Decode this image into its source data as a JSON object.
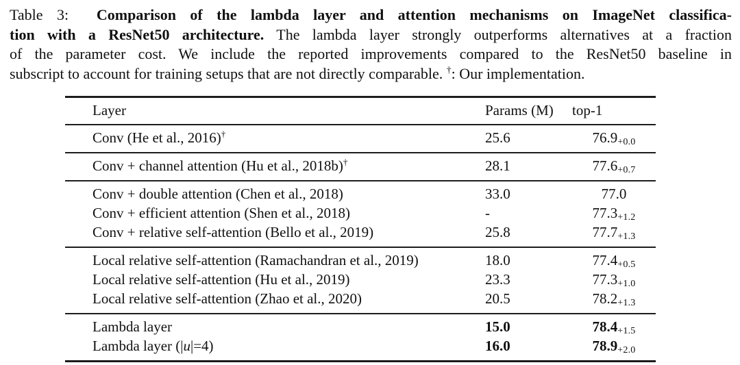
{
  "caption": {
    "lines": [
      {
        "segments": [
          {
            "t": "Table 3:  ",
            "b": false
          },
          {
            "t": "Comparison of the lambda layer and attention mechanisms on ImageNet classifica-",
            "b": true
          }
        ]
      },
      {
        "segments": [
          {
            "t": "tion with a ResNet50 architecture.",
            "b": true
          },
          {
            "t": " The lambda layer strongly outperforms alternatives at a fraction",
            "b": false
          }
        ]
      },
      {
        "segments": [
          {
            "t": "of the parameter cost. We include the reported improvements compared to the ResNet50 baseline in",
            "b": false
          }
        ]
      },
      {
        "segments": [
          {
            "t": "subscript to account for training setups that are not directly comparable. ",
            "b": false
          },
          {
            "t": "†",
            "sup": true
          },
          {
            "t": ": Our implementation.",
            "b": false
          }
        ]
      }
    ]
  },
  "table": {
    "columns": [
      "Layer",
      "Params (M)",
      "top-1"
    ],
    "groups": [
      {
        "rows": [
          {
            "label": "Conv (He et al., 2016)",
            "sup": "†",
            "params": "25.6",
            "top1": "76.9",
            "sub": "+0.0",
            "bold": false
          }
        ]
      },
      {
        "rows": [
          {
            "label": "Conv + channel attention (Hu et al., 2018b)",
            "sup": "†",
            "params": "28.1",
            "top1": "77.6",
            "sub": "+0.7",
            "bold": false
          }
        ]
      },
      {
        "rows": [
          {
            "label": "Conv + double attention (Chen et al., 2018)",
            "sup": "",
            "params": "33.0",
            "top1": "77.0",
            "sub": "",
            "bold": false
          },
          {
            "label": "Conv + efficient attention (Shen et al., 2018)",
            "sup": "",
            "params": "-",
            "top1": "77.3",
            "sub": "+1.2",
            "bold": false
          },
          {
            "label": "Conv + relative self-attention (Bello et al., 2019)",
            "sup": "",
            "params": "25.8",
            "top1": "77.7",
            "sub": "+1.3",
            "bold": false
          }
        ]
      },
      {
        "rows": [
          {
            "label": "Local relative self-attention (Ramachandran et al., 2019)",
            "sup": "",
            "params": "18.0",
            "top1": "77.4",
            "sub": "+0.5",
            "bold": false
          },
          {
            "label": "Local relative self-attention (Hu et al., 2019)",
            "sup": "",
            "params": "23.3",
            "top1": "77.3",
            "sub": "+1.0",
            "bold": false
          },
          {
            "label": "Local relative self-attention (Zhao et al., 2020)",
            "sup": "",
            "params": "20.5",
            "top1": "78.2",
            "sub": "+1.3",
            "bold": false
          }
        ]
      },
      {
        "rows": [
          {
            "label": "Lambda layer",
            "sup": "",
            "params": "15.0",
            "top1": "78.4",
            "sub": "+1.5",
            "bold": true
          },
          {
            "label_parts": [
              {
                "t": "Lambda layer (|"
              },
              {
                "t": "u",
                "i": true
              },
              {
                "t": "|=4)"
              }
            ],
            "sup": "",
            "params": "16.0",
            "top1": "78.9",
            "sub": "+2.0",
            "bold": true
          }
        ]
      }
    ]
  }
}
